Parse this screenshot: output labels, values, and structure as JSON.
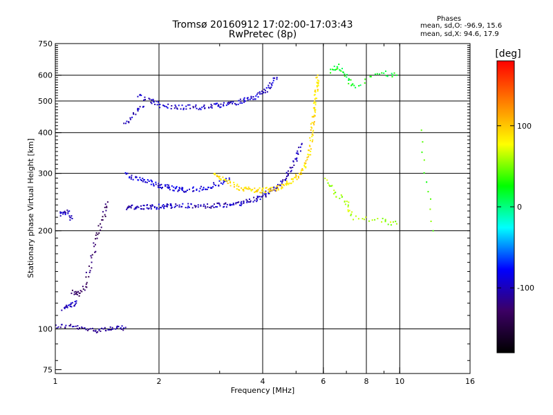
{
  "header": {
    "title_line1": "Tromsø 20160912 17:02:00-17:03:43",
    "title_line2": "RwPretec (8p)",
    "stats_title": "Phases",
    "stats_o": "mean, sd,O: -96.9, 15.6",
    "stats_x": "mean, sd,X:  94.6, 17.9"
  },
  "chart_data": {
    "type": "scatter",
    "xlabel": "Frequency [MHz]",
    "ylabel": "Stationary phase Virtual Height [km]",
    "x_scale": "log",
    "y_scale": "log",
    "xlim": [
      1,
      16
    ],
    "ylim": [
      73,
      750
    ],
    "x_ticks": [
      1,
      2,
      4,
      6,
      8,
      10,
      16
    ],
    "y_ticks": [
      75,
      100,
      200,
      300,
      400,
      500,
      600,
      750
    ],
    "x_gridlines": [
      2,
      4,
      6,
      8,
      10
    ],
    "y_gridlines": [
      100,
      200,
      300,
      400,
      500,
      600
    ],
    "grid": true,
    "colorbar": {
      "label": "[deg]",
      "ticks": [
        100,
        0,
        -100
      ],
      "range": [
        -180,
        180
      ],
      "colors_top_to_bottom": [
        "#ff0000",
        "#ff8000",
        "#ffff00",
        "#00ff00",
        "#00ffff",
        "#0000ff",
        "#3c0064",
        "#000000"
      ]
    },
    "series": [
      {
        "traces": [
          {
            "x": [
              1.0,
              1.1,
              1.2,
              1.3,
              1.4,
              1.5,
              1.6
            ],
            "y": [
              102,
              102,
              100,
              99,
              100,
              100,
              101
            ],
            "phase": -110
          },
          {
            "x": [
              1.05,
              1.1,
              1.15
            ],
            "y": [
              115,
              118,
              120
            ],
            "phase": -100
          },
          {
            "x": [
              1.12,
              1.17,
              1.22,
              1.27,
              1.32,
              1.37,
              1.42
            ],
            "y": [
              130,
              128,
              135,
              160,
              190,
              215,
              245
            ],
            "phase": -130
          },
          {
            "x": [
              1.03,
              1.08,
              1.12
            ],
            "y": [
              225,
              230,
              218
            ],
            "phase": -100
          },
          {
            "x": [
              1.6,
              1.7,
              1.8,
              1.9,
              2.0,
              2.1,
              2.2,
              2.4,
              2.6,
              2.8,
              3.0,
              3.2,
              3.4,
              3.6,
              3.8,
              4.0,
              4.2,
              4.4,
              4.6,
              4.8,
              5.0,
              5.2
            ],
            "y": [
              235,
              236,
              236,
              237,
              237,
              238,
              238,
              238,
              238,
              238,
              239,
              240,
              242,
              246,
              250,
              256,
              263,
              272,
              285,
              305,
              335,
              370
            ],
            "phase": -100
          },
          {
            "x": [
              1.6,
              1.7,
              1.8,
              1.9,
              2.0,
              2.1,
              2.2,
              2.3,
              2.4,
              2.6,
              2.8,
              3.0,
              3.2
            ],
            "y": [
              300,
              290,
              285,
              280,
              275,
              272,
              270,
              268,
              267,
              268,
              272,
              280,
              290
            ],
            "phase": -90
          },
          {
            "x": [
              1.6,
              1.7,
              1.8
            ],
            "y": [
              420,
              460,
              480
            ],
            "phase": -100
          },
          {
            "x": [
              1.75,
              1.9,
              2.0,
              2.2,
              2.4,
              2.6,
              2.8,
              3.0,
              3.2,
              3.4,
              3.6,
              3.8,
              4.0,
              4.2,
              4.4
            ],
            "y": [
              520,
              500,
              485,
              480,
              478,
              478,
              480,
              485,
              490,
              497,
              505,
              515,
              530,
              555,
              590
            ],
            "phase": -95
          },
          {
            "x": [
              2.9,
              3.0,
              3.2,
              3.4,
              3.6,
              3.8,
              4.0,
              4.2,
              4.4,
              4.6,
              4.8,
              5.0,
              5.2,
              5.4,
              5.5,
              5.55,
              5.6,
              5.65,
              5.7,
              5.75,
              5.78
            ],
            "y": [
              300,
              290,
              280,
              272,
              268,
              266,
              266,
              267,
              270,
              275,
              282,
              290,
              305,
              330,
              360,
              400,
              440,
              480,
              520,
              560,
              600
            ],
            "phase": 90
          },
          {
            "x": [
              6.3,
              6.6,
              7.0,
              7.3,
              8.8,
              9.8
            ],
            "y": [
              620,
              640,
              600,
              550,
              610,
              600
            ],
            "phase": 20
          },
          {
            "x": [
              6.1,
              6.5,
              7.0,
              7.3,
              8.8,
              9.8
            ],
            "y": [
              290,
              260,
              245,
              220,
              215,
              210
            ],
            "phase": 60
          },
          {
            "x": [
              11.5,
              12.5
            ],
            "y": [
              400,
              200
            ],
            "phase": 40
          }
        ]
      }
    ]
  }
}
